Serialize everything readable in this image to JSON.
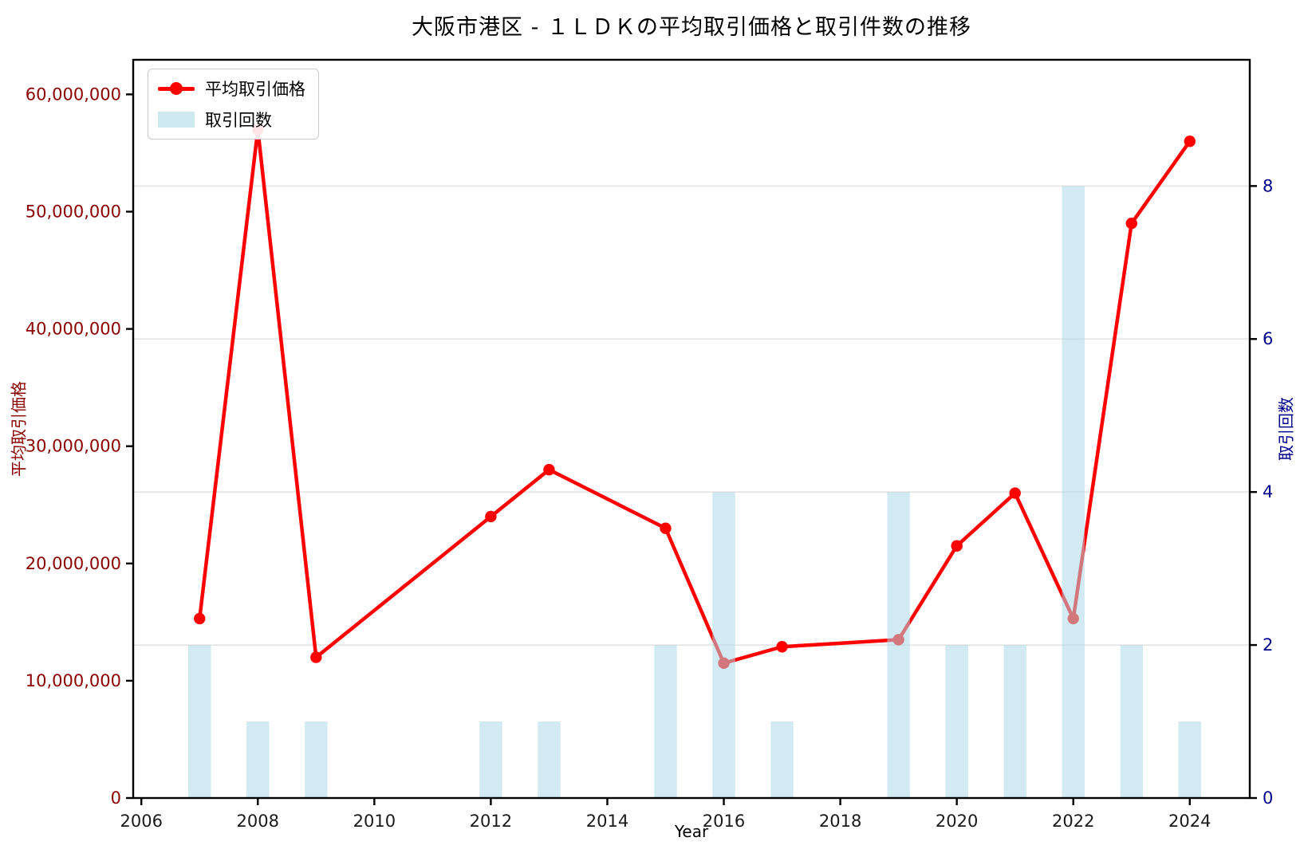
{
  "title": "大阪市港区 - １ＬＤＫの平均取引価格と取引件数の推移",
  "legend": {
    "price_label": "平均取引価格",
    "count_label": "取引回数"
  },
  "axes": {
    "left_label": "平均取引価格",
    "right_label": "取引回数",
    "x_label": "Year",
    "x_ticks": [
      2006,
      2008,
      2010,
      2012,
      2014,
      2016,
      2018,
      2020,
      2022,
      2024
    ],
    "left_ticks": [
      0,
      10000000,
      20000000,
      30000000,
      40000000,
      50000000,
      60000000
    ],
    "left_tick_labels": [
      "0",
      "10,000,000",
      "20,000,000",
      "30,000,000",
      "40,000,000",
      "50,000,000",
      "60,000,000"
    ],
    "right_ticks": [
      0,
      2,
      4,
      6,
      8
    ],
    "right_tick_labels": [
      "0",
      "2",
      "4",
      "6",
      "8"
    ]
  },
  "colors": {
    "line": "#ff0000",
    "bar": "#add8e6",
    "bar_opacity": 0.55,
    "left_tick_color": "#8b0000",
    "right_tick_color": "#00008b",
    "grid": "#e8e8e8",
    "spine": "#000000",
    "tick_label_color": "#1a1a1a",
    "background": "#ffffff"
  },
  "chart_data": {
    "type": "line+bar (dual axis)",
    "title": "大阪市港区 - １ＬＤＫの平均取引価格と取引件数の推移",
    "xlabel": "Year",
    "ylabel_left": "平均取引価格",
    "ylabel_right": "取引回数",
    "x": [
      2007,
      2008,
      2009,
      2012,
      2013,
      2015,
      2016,
      2017,
      2019,
      2020,
      2021,
      2022,
      2023,
      2024
    ],
    "series": [
      {
        "name": "平均取引価格",
        "type": "line",
        "axis": "left",
        "marker": "circle",
        "values": [
          15300000,
          57000000,
          12000000,
          24000000,
          28000000,
          23000000,
          11500000,
          12900000,
          13500000,
          21500000,
          26000000,
          15300000,
          49000000,
          56000000
        ]
      },
      {
        "name": "取引回数",
        "type": "bar",
        "axis": "right",
        "values": [
          2,
          1,
          1,
          1,
          1,
          2,
          4,
          1,
          4,
          2,
          2,
          8,
          2,
          1
        ]
      }
    ],
    "xlim": [
      2005.86,
      2025.03
    ],
    "ylim_left": [
      0,
      62950000
    ],
    "ylim_right": [
      0,
      9.65
    ],
    "bar_width_years": 0.39,
    "grid": "horizontal lines at right-axis ticks 2,4,6,8",
    "legend_position": "upper left"
  }
}
